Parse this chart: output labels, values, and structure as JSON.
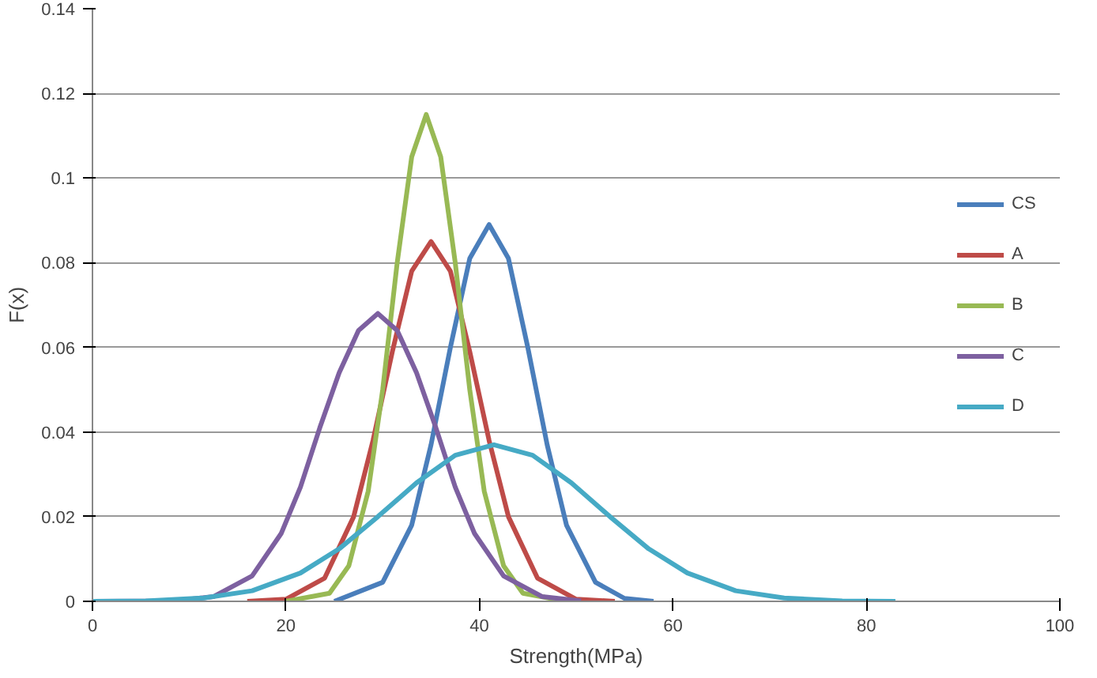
{
  "chart_data": {
    "type": "line",
    "xlabel": "Strength(MPa)",
    "ylabel": "F(x)",
    "xlim": [
      0,
      100
    ],
    "xticks": [
      0,
      20,
      40,
      60,
      80,
      100
    ],
    "ylim": [
      0,
      0.14
    ],
    "yticks": [
      0,
      0.02,
      0.04,
      0.06,
      0.08,
      0.1,
      0.12,
      0.14
    ],
    "grid": "y",
    "legend": "right",
    "marker": "none",
    "line_style": "solid",
    "series": [
      {
        "name": "CS",
        "color": "#4a7ebb",
        "x": [
          25,
          30,
          33,
          35,
          37,
          39,
          41,
          43,
          45,
          47,
          49,
          52,
          55,
          58
        ],
        "values": [
          0,
          0.0045,
          0.018,
          0.037,
          0.06,
          0.081,
          0.089,
          0.081,
          0.06,
          0.037,
          0.018,
          0.0045,
          0.0007,
          0
        ]
      },
      {
        "name": "A",
        "color": "#be4b48",
        "x": [
          16,
          20,
          24,
          27,
          29,
          31,
          33,
          35,
          37,
          39,
          41,
          43,
          46,
          50,
          54
        ],
        "values": [
          0,
          0.0005,
          0.0055,
          0.02,
          0.038,
          0.059,
          0.078,
          0.085,
          0.078,
          0.059,
          0.038,
          0.02,
          0.0055,
          0.0005,
          0
        ]
      },
      {
        "name": "B",
        "color": "#98b954",
        "x": [
          20,
          24.5,
          26.5,
          28.5,
          30,
          31.5,
          33,
          34.5,
          36,
          37.5,
          39,
          40.5,
          42.5,
          44.5,
          49
        ],
        "values": [
          0,
          0.0019,
          0.0084,
          0.026,
          0.05,
          0.08,
          0.105,
          0.115,
          0.105,
          0.08,
          0.05,
          0.026,
          0.0084,
          0.0019,
          0
        ]
      },
      {
        "name": "C",
        "color": "#7d60a0",
        "x": [
          0,
          8.5,
          12.5,
          16.5,
          19.5,
          21.5,
          23.5,
          25.5,
          27.5,
          29.5,
          31.5,
          33.5,
          35.5,
          37.5,
          39.5,
          42.5,
          46.5,
          50.5
        ],
        "values": [
          0,
          0.0001,
          0.0011,
          0.006,
          0.016,
          0.027,
          0.041,
          0.054,
          0.064,
          0.068,
          0.064,
          0.054,
          0.041,
          0.027,
          0.016,
          0.006,
          0.0011,
          0.0001
        ]
      },
      {
        "name": "D",
        "color": "#46aac5",
        "x": [
          0,
          5.5,
          11.5,
          16.5,
          21.5,
          25.5,
          29.5,
          33.5,
          37.5,
          41.5,
          45.5,
          49.5,
          53.5,
          57.5,
          61.5,
          66.5,
          71.5,
          77.5,
          83
        ],
        "values": [
          0,
          0.0001,
          0.0008,
          0.0025,
          0.0067,
          0.0124,
          0.02,
          0.028,
          0.0345,
          0.037,
          0.0345,
          0.028,
          0.02,
          0.0124,
          0.0067,
          0.0025,
          0.0008,
          0.0001,
          0
        ]
      }
    ]
  }
}
